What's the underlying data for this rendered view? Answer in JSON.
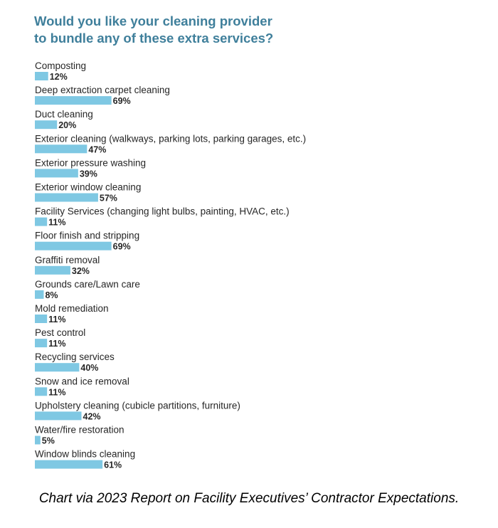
{
  "chart_data": {
    "type": "bar",
    "orientation": "horizontal",
    "title_lines": [
      "Would you like your cleaning provider",
      "to bundle any of these extra services?"
    ],
    "categories": [
      "Composting",
      "Deep extraction carpet cleaning",
      "Duct cleaning",
      "Exterior cleaning (walkways, parking lots, parking garages, etc.)",
      "Exterior pressure washing",
      "Exterior window cleaning",
      "Facility Services (changing light bulbs, painting, HVAC, etc.)",
      "Floor finish and stripping",
      "Graffiti removal",
      "Grounds care/Lawn care",
      "Mold remediation",
      "Pest control",
      "Recycling services",
      "Snow and ice removal",
      "Upholstery cleaning (cubicle partitions, furniture)",
      "Water/fire restoration",
      "Window blinds cleaning"
    ],
    "values": [
      12,
      69,
      20,
      47,
      39,
      57,
      11,
      69,
      32,
      8,
      11,
      11,
      40,
      11,
      42,
      5,
      61
    ],
    "value_suffix": "%",
    "bar_color": "#7fc8e3",
    "title_color": "#3f7f9b",
    "grid": false,
    "legend": "none"
  },
  "caption": "Chart via 2023 Report on Facility Executives’ Contractor Expectations."
}
